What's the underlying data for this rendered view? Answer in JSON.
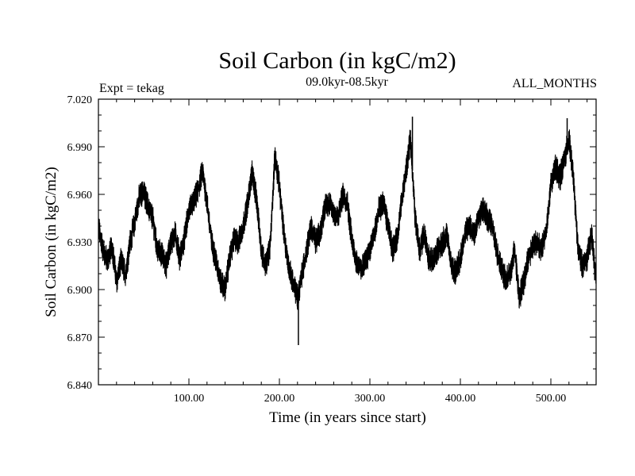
{
  "chart_data": {
    "type": "line",
    "title": "Soil Carbon (in kgC/m2)",
    "subtitle_left": "Expt = tekag",
    "subtitle_center": "09.0kyr-08.5kyr",
    "subtitle_right": "ALL_MONTHS",
    "xlabel": "Time (in years since start)",
    "ylabel": "Soil Carbon (in kgC/m2)",
    "xlim": [
      0,
      550
    ],
    "ylim": [
      6.84,
      7.02
    ],
    "x_ticks": [
      100,
      200,
      300,
      400,
      500
    ],
    "x_tick_labels": [
      "100.00",
      "200.00",
      "300.00",
      "400.00",
      "500.00"
    ],
    "y_ticks": [
      6.84,
      6.87,
      6.9,
      6.93,
      6.96,
      6.99,
      7.02
    ],
    "y_tick_labels": [
      "6.840",
      "6.870",
      "6.900",
      "6.930",
      "6.960",
      "6.990",
      "7.020"
    ],
    "grid": false,
    "series": [
      {
        "name": "Soil Carbon",
        "color": "#000000",
        "band_half_width": 0.007,
        "x": [
          0,
          5,
          10,
          15,
          20,
          25,
          30,
          35,
          40,
          45,
          50,
          55,
          60,
          65,
          70,
          75,
          80,
          85,
          90,
          95,
          100,
          105,
          110,
          115,
          120,
          125,
          130,
          135,
          140,
          145,
          150,
          155,
          160,
          165,
          170,
          175,
          180,
          185,
          190,
          195,
          200,
          205,
          210,
          215,
          220,
          225,
          230,
          235,
          240,
          245,
          250,
          255,
          260,
          265,
          270,
          275,
          280,
          285,
          290,
          295,
          300,
          305,
          310,
          315,
          320,
          325,
          330,
          335,
          340,
          345,
          350,
          355,
          360,
          365,
          370,
          375,
          380,
          385,
          390,
          395,
          400,
          405,
          410,
          415,
          420,
          425,
          430,
          435,
          440,
          445,
          450,
          455,
          460,
          465,
          470,
          475,
          480,
          485,
          490,
          495,
          500,
          505,
          510,
          515,
          520,
          525,
          530,
          535,
          540,
          545,
          550
        ],
        "values": [
          6.94,
          6.925,
          6.918,
          6.928,
          6.905,
          6.918,
          6.91,
          6.93,
          6.942,
          6.958,
          6.962,
          6.952,
          6.945,
          6.925,
          6.922,
          6.915,
          6.93,
          6.935,
          6.92,
          6.932,
          6.95,
          6.955,
          6.962,
          6.975,
          6.955,
          6.93,
          6.918,
          6.905,
          6.9,
          6.92,
          6.932,
          6.93,
          6.94,
          6.955,
          6.975,
          6.955,
          6.925,
          6.915,
          6.928,
          6.985,
          6.965,
          6.935,
          6.915,
          6.905,
          6.895,
          6.91,
          6.925,
          6.94,
          6.93,
          6.935,
          6.952,
          6.955,
          6.948,
          6.945,
          6.96,
          6.955,
          6.932,
          6.918,
          6.912,
          6.918,
          6.925,
          6.935,
          6.95,
          6.955,
          6.94,
          6.925,
          6.932,
          6.955,
          6.975,
          6.995,
          6.945,
          6.925,
          6.935,
          6.92,
          6.918,
          6.925,
          6.93,
          6.935,
          6.915,
          6.91,
          6.92,
          6.935,
          6.94,
          6.935,
          6.945,
          6.952,
          6.945,
          6.94,
          6.925,
          6.915,
          6.905,
          6.91,
          6.925,
          6.895,
          6.905,
          6.92,
          6.928,
          6.93,
          6.925,
          6.938,
          6.965,
          6.978,
          6.97,
          6.982,
          6.995,
          6.97,
          6.925,
          6.915,
          6.92,
          6.935,
          6.905
        ]
      }
    ],
    "extremes": {
      "min": {
        "x": 221,
        "y": 6.865
      },
      "max": {
        "x": 347,
        "y": 7.009
      },
      "peak2": {
        "x": 518,
        "y": 7.008
      }
    }
  }
}
